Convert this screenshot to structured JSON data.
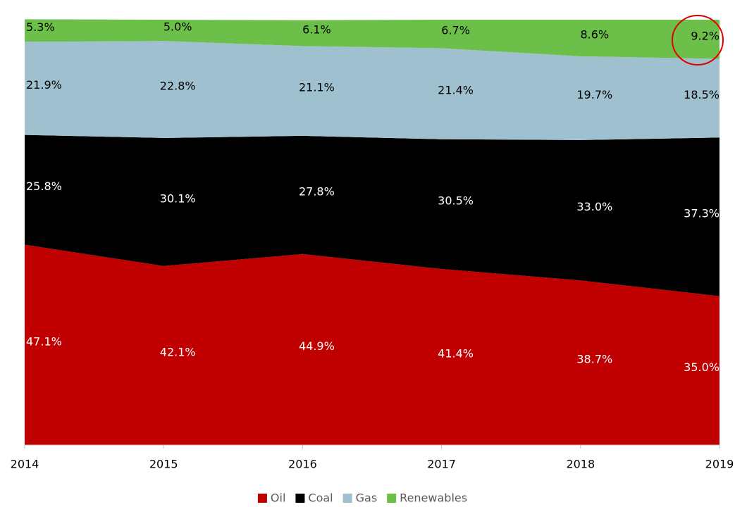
{
  "chart_data": {
    "type": "stacked_area",
    "categories": [
      "2014",
      "2015",
      "2016",
      "2017",
      "2018",
      "2019"
    ],
    "series": [
      {
        "name": "Oil",
        "color": "#c00000",
        "label_color": "#ffffff",
        "values": [
          47.1,
          42.1,
          44.9,
          41.4,
          38.7,
          35.0
        ],
        "value_labels": [
          "47.1%",
          "42.1%",
          "44.9%",
          "41.4%",
          "38.7%",
          "35.0%"
        ]
      },
      {
        "name": "Coal",
        "color": "#000000",
        "label_color": "#ffffff",
        "values": [
          25.8,
          30.1,
          27.8,
          30.5,
          33.0,
          37.3
        ],
        "value_labels": [
          "25.8%",
          "30.1%",
          "27.8%",
          "30.5%",
          "33.0%",
          "37.3%"
        ]
      },
      {
        "name": "Gas",
        "color": "#9fc0cf",
        "label_color": "#000000",
        "values": [
          21.9,
          22.8,
          21.1,
          21.4,
          19.7,
          18.5
        ],
        "value_labels": [
          "21.9%",
          "22.8%",
          "21.1%",
          "21.4%",
          "19.7%",
          "18.5%"
        ]
      },
      {
        "name": "Renewables",
        "color": "#6cc04a",
        "label_color": "#000000",
        "values": [
          5.3,
          5.0,
          6.1,
          6.7,
          8.6,
          9.2
        ],
        "value_labels": [
          "5.3%",
          "5.0%",
          "6.1%",
          "6.7%",
          "8.6%",
          "9.2%"
        ]
      }
    ],
    "ylim": [
      0,
      100
    ],
    "legend": "bottom"
  }
}
